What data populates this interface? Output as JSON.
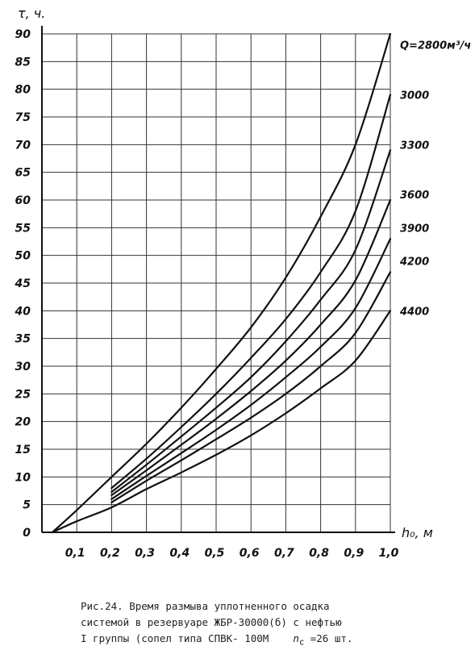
{
  "chart_data": {
    "type": "line",
    "ylabel": "τ, ч.",
    "xlabel": "h₀, м",
    "xlim": [
      0,
      1.0
    ],
    "ylim": [
      0,
      90
    ],
    "x_ticks": [
      0.1,
      0.2,
      0.3,
      0.4,
      0.5,
      0.6,
      0.7,
      0.8,
      0.9,
      1.0
    ],
    "x_tick_labels": [
      "0,1",
      "0,2",
      "0,3",
      "0,4",
      "0,5",
      "0,6",
      "0,7",
      "0,8",
      "0,9",
      "1,0"
    ],
    "y_ticks": [
      0,
      5,
      10,
      15,
      20,
      25,
      30,
      35,
      40,
      45,
      50,
      55,
      60,
      65,
      70,
      75,
      80,
      85,
      90
    ],
    "grid": true,
    "series": [
      {
        "name": "Q=2800м³/ч",
        "points": [
          [
            0.03,
            0
          ],
          [
            0.1,
            4
          ],
          [
            0.2,
            10
          ],
          [
            0.3,
            16
          ],
          [
            0.4,
            22.5
          ],
          [
            0.5,
            29.5
          ],
          [
            0.6,
            37
          ],
          [
            0.7,
            46
          ],
          [
            0.8,
            57
          ],
          [
            0.9,
            70
          ],
          [
            1.0,
            90
          ]
        ]
      },
      {
        "name": "3000",
        "points": [
          [
            0.2,
            8
          ],
          [
            0.3,
            13.3
          ],
          [
            0.4,
            19
          ],
          [
            0.5,
            25
          ],
          [
            0.6,
            31.5
          ],
          [
            0.7,
            38.5
          ],
          [
            0.8,
            47
          ],
          [
            0.9,
            58
          ],
          [
            1.0,
            79
          ]
        ]
      },
      {
        "name": "3300",
        "points": [
          [
            0.2,
            7.3
          ],
          [
            0.3,
            12.2
          ],
          [
            0.4,
            17.3
          ],
          [
            0.5,
            22.5
          ],
          [
            0.6,
            28
          ],
          [
            0.7,
            34.5
          ],
          [
            0.8,
            42
          ],
          [
            0.9,
            51
          ],
          [
            1.0,
            69
          ]
        ]
      },
      {
        "name": "3600",
        "points": [
          [
            0.2,
            6.7
          ],
          [
            0.3,
            11.2
          ],
          [
            0.4,
            15.8
          ],
          [
            0.5,
            20.5
          ],
          [
            0.6,
            25.5
          ],
          [
            0.7,
            31
          ],
          [
            0.8,
            37.5
          ],
          [
            0.9,
            45.5
          ],
          [
            1.0,
            60
          ]
        ]
      },
      {
        "name": "3900",
        "points": [
          [
            0.2,
            6
          ],
          [
            0.3,
            10.2
          ],
          [
            0.4,
            14.3
          ],
          [
            0.5,
            18.5
          ],
          [
            0.6,
            23
          ],
          [
            0.7,
            28
          ],
          [
            0.8,
            33.5
          ],
          [
            0.9,
            40.5
          ],
          [
            1.0,
            53
          ]
        ]
      },
      {
        "name": "4200",
        "points": [
          [
            0.2,
            5.4
          ],
          [
            0.3,
            9.3
          ],
          [
            0.4,
            13
          ],
          [
            0.5,
            16.8
          ],
          [
            0.6,
            20.7
          ],
          [
            0.7,
            25
          ],
          [
            0.8,
            30
          ],
          [
            0.9,
            36
          ],
          [
            1.0,
            47
          ]
        ]
      },
      {
        "name": "4400",
        "points": [
          [
            0.03,
            0
          ],
          [
            0.1,
            2
          ],
          [
            0.2,
            4.5
          ],
          [
            0.3,
            7.8
          ],
          [
            0.4,
            10.8
          ],
          [
            0.5,
            14
          ],
          [
            0.6,
            17.5
          ],
          [
            0.7,
            21.5
          ],
          [
            0.8,
            26
          ],
          [
            0.9,
            31
          ],
          [
            1.0,
            40
          ]
        ]
      }
    ],
    "series_label_values": [
      88,
      79,
      70,
      61,
      55,
      49,
      40
    ]
  },
  "caption": {
    "line1": "Рис.24.    Время размыва уплотненного осадка",
    "line2": "системой в резервуаре ЖБР-30000(б)  с нефтью",
    "line3_main": "I группы (сопел типа СПВК- 100М",
    "line3_param": "n",
    "line3_sub": "c",
    "line3_value": " =26 шт."
  }
}
